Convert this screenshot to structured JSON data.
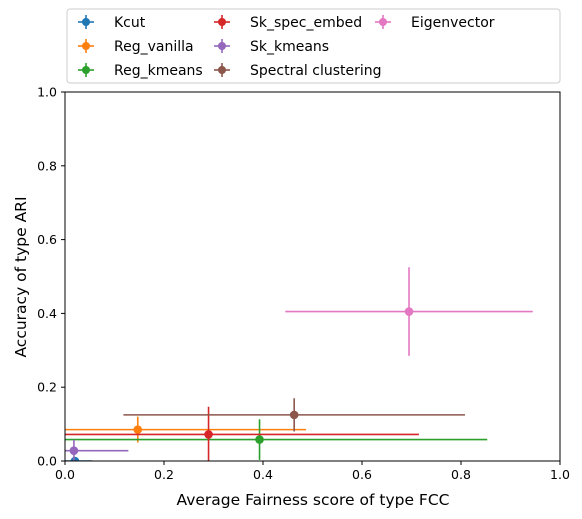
{
  "chart_data": {
    "type": "scatter",
    "xlabel": "Average Fairness score of type FCC",
    "ylabel": "Accuracy of type ARI",
    "xlim": [
      0.0,
      1.0
    ],
    "ylim": [
      0.0,
      1.0
    ],
    "xticks": [
      "0.0",
      "0.2",
      "0.4",
      "0.6",
      "0.8",
      "1.0"
    ],
    "yticks": [
      "0.0",
      "0.2",
      "0.4",
      "0.6",
      "0.8",
      "1.0"
    ],
    "grid": false,
    "legend_placement": "top, above plot, 3 columns",
    "series": [
      {
        "name": "Kcut",
        "color": "#1f77b4",
        "x": 0.02,
        "y": 0.0,
        "xerr": 0.035,
        "yerr": 0.0
      },
      {
        "name": "Reg_vanilla",
        "color": "#ff7f0e",
        "x": 0.147,
        "y": 0.085,
        "xerr": 0.34,
        "yerr": 0.035
      },
      {
        "name": "Reg_kmeans",
        "color": "#2ca02c",
        "x": 0.393,
        "y": 0.058,
        "xerr": 0.46,
        "yerr": 0.055
      },
      {
        "name": "Sk_spec_embed",
        "color": "#d62728",
        "x": 0.29,
        "y": 0.072,
        "xerr": 0.425,
        "yerr": 0.075
      },
      {
        "name": "Sk_kmeans",
        "color": "#9467bd",
        "x": 0.018,
        "y": 0.028,
        "xerr": 0.11,
        "yerr": 0.03
      },
      {
        "name": "Spectral clustering",
        "color": "#8c564b",
        "x": 0.463,
        "y": 0.125,
        "xerr": 0.345,
        "yerr": 0.045
      },
      {
        "name": "Eigenvector",
        "color": "#e377c2",
        "x": 0.695,
        "y": 0.405,
        "xerr": 0.25,
        "yerr": 0.12
      }
    ]
  }
}
